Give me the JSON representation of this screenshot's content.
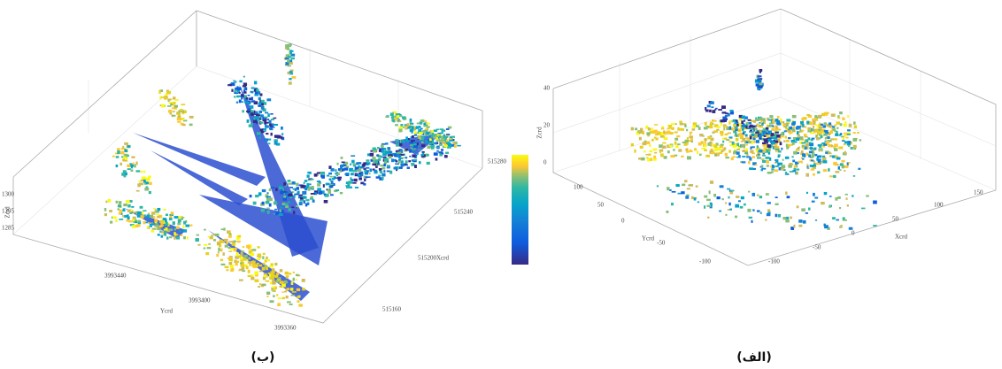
{
  "panels": [
    {
      "caption": "(ب)",
      "z_label": "Zcrd",
      "y_label": "Ycrd",
      "x_label": "Xcrd",
      "z_ticks": [
        "1300",
        "1295",
        "1285"
      ],
      "y_ticks": [
        "3993440",
        "3993400",
        "3993360"
      ],
      "x_ticks": [
        "515280",
        "515240",
        "515200",
        "515160"
      ]
    },
    {
      "caption": "(الف)",
      "z_label": "Zcrd",
      "y_label": "Ycrd",
      "x_label": "Xcrd",
      "z_ticks": [
        "40",
        "20",
        "0"
      ],
      "y_ticks": [
        "100",
        "50",
        "0",
        "-50",
        "-100"
      ],
      "x_ticks": [
        "-100",
        "-50",
        "0",
        "50",
        "100",
        "150"
      ]
    }
  ]
}
